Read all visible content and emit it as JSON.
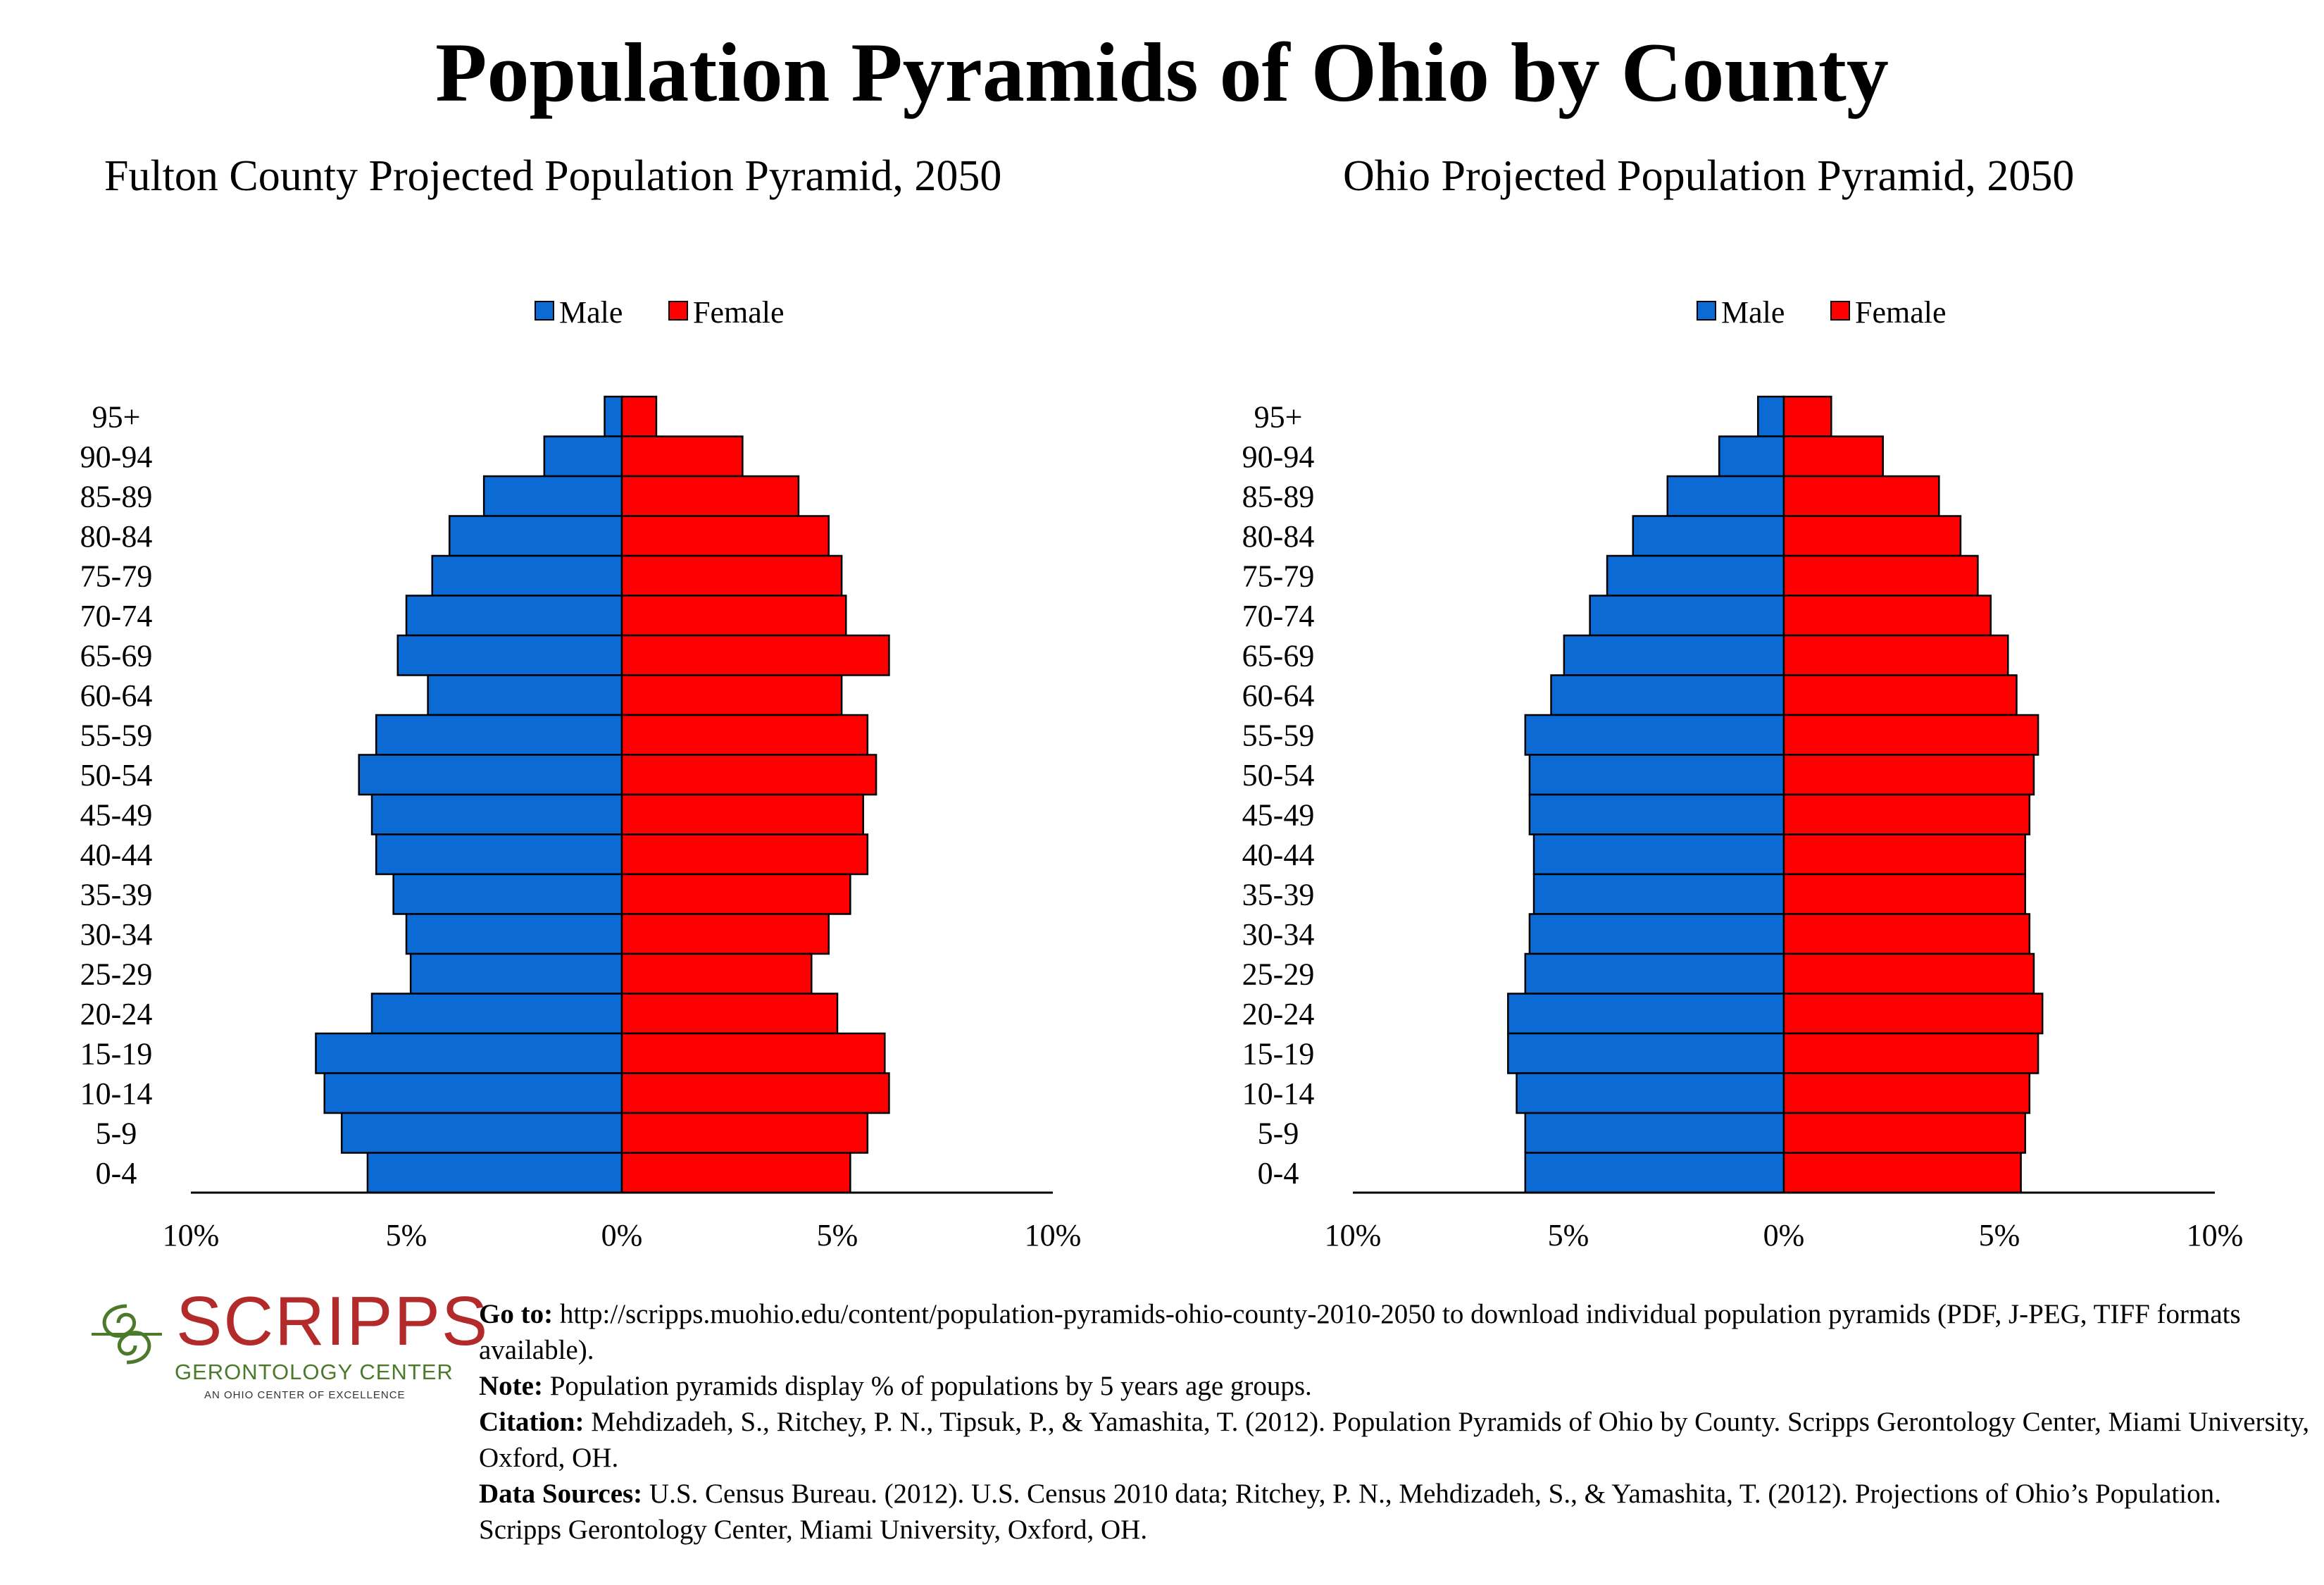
{
  "header": {
    "title": "Population Pyramids of Ohio by County"
  },
  "legend": {
    "male_label": "Male",
    "female_label": "Female"
  },
  "colors": {
    "male": "#0b6ad4",
    "female": "#ff0000"
  },
  "chart_data": [
    {
      "type": "bar",
      "orientation": "horizontal-pyramid",
      "title": "Fulton County Projected Population Pyramid, 2050",
      "categories": [
        "95+",
        "90-94",
        "85-89",
        "80-84",
        "75-79",
        "70-74",
        "65-69",
        "60-64",
        "55-59",
        "50-54",
        "45-49",
        "40-44",
        "35-39",
        "30-34",
        "25-29",
        "20-24",
        "15-19",
        "10-14",
        "5-9",
        "0-4"
      ],
      "series": [
        {
          "name": "Male",
          "values": [
            0.4,
            1.8,
            3.2,
            4.0,
            4.4,
            5.0,
            5.2,
            4.5,
            5.7,
            6.1,
            5.8,
            5.7,
            5.3,
            5.0,
            4.9,
            5.8,
            7.1,
            6.9,
            6.5,
            5.9
          ]
        },
        {
          "name": "Female",
          "values": [
            0.8,
            2.8,
            4.1,
            4.8,
            5.1,
            5.2,
            6.2,
            5.1,
            5.7,
            5.9,
            5.6,
            5.7,
            5.3,
            4.8,
            4.4,
            5.0,
            6.1,
            6.2,
            5.7,
            5.3
          ]
        }
      ],
      "xticks": [
        "10%",
        "5%",
        "0%",
        "5%",
        "10%"
      ],
      "xlim": [
        -10,
        10
      ],
      "legend": "top-center"
    },
    {
      "type": "bar",
      "orientation": "horizontal-pyramid",
      "title": "Ohio Projected Population Pyramid, 2050",
      "categories": [
        "95+",
        "90-94",
        "85-89",
        "80-84",
        "75-79",
        "70-74",
        "65-69",
        "60-64",
        "55-59",
        "50-54",
        "45-49",
        "40-44",
        "35-39",
        "30-34",
        "25-29",
        "20-24",
        "15-19",
        "10-14",
        "5-9",
        "0-4"
      ],
      "series": [
        {
          "name": "Male",
          "values": [
            0.6,
            1.5,
            2.7,
            3.5,
            4.1,
            4.5,
            5.1,
            5.4,
            6.0,
            5.9,
            5.9,
            5.8,
            5.8,
            5.9,
            6.0,
            6.4,
            6.4,
            6.2,
            6.0,
            6.0
          ]
        },
        {
          "name": "Female",
          "values": [
            1.1,
            2.3,
            3.6,
            4.1,
            4.5,
            4.8,
            5.2,
            5.4,
            5.9,
            5.8,
            5.7,
            5.6,
            5.6,
            5.7,
            5.8,
            6.0,
            5.9,
            5.7,
            5.6,
            5.5
          ]
        }
      ],
      "xticks": [
        "10%",
        "5%",
        "0%",
        "5%",
        "10%"
      ],
      "xlim": [
        -10,
        10
      ],
      "legend": "top-center"
    }
  ],
  "logo": {
    "name": "SCRIPPS",
    "subtitle": "GERONTOLOGY CENTER",
    "tagline": "AN OHIO CENTER OF EXCELLENCE"
  },
  "notes": {
    "goto_label": "Go to:",
    "goto_text": " http://scripps.muohio.edu/content/population-pyramids-ohio-county-2010-2050 to download individual population pyramids (PDF, J-PEG, TIFF formats available).",
    "note_label": "Note:",
    "note_text": " Population pyramids display % of populations by 5 years age groups.",
    "citation_label": "Citation:",
    "citation_text": " Mehdizadeh, S., Ritchey, P. N., Tipsuk, P., & Yamashita, T. (2012). Population Pyramids of Ohio by County. Scripps Gerontology Center, Miami University, Oxford, OH.",
    "sources_label": "Data Sources:",
    "sources_text": " U.S. Census Bureau. (2012). U.S. Census 2010 data; Ritchey, P. N., Mehdizadeh, S., & Yamashita, T. (2012). Projections of Ohio’s Population. Scripps Gerontology Center, Miami University, Oxford, OH."
  }
}
